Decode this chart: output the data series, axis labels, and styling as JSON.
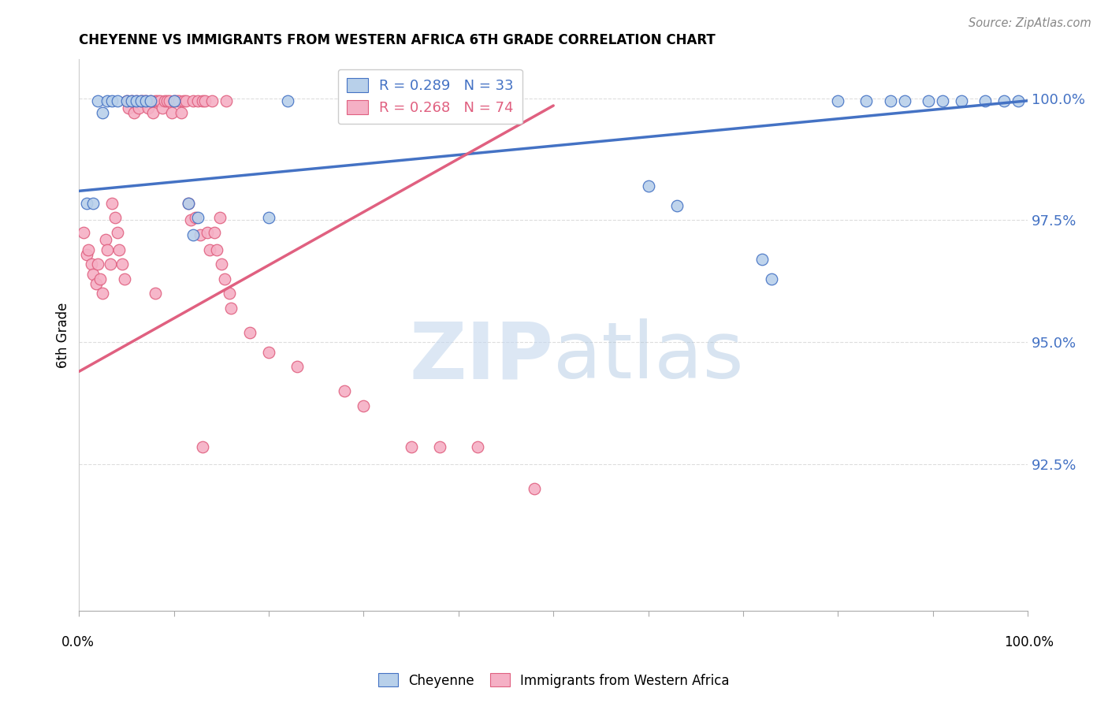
{
  "title": "CHEYENNE VS IMMIGRANTS FROM WESTERN AFRICA 6TH GRADE CORRELATION CHART",
  "source": "Source: ZipAtlas.com",
  "ylabel": "6th Grade",
  "ytick_labels": [
    "100.0%",
    "97.5%",
    "95.0%",
    "92.5%"
  ],
  "ytick_values": [
    1.0,
    0.975,
    0.95,
    0.925
  ],
  "xlim": [
    0.0,
    1.0
  ],
  "ylim": [
    0.895,
    1.008
  ],
  "legend_blue_r": "R = 0.289",
  "legend_blue_n": "N = 33",
  "legend_pink_r": "R = 0.268",
  "legend_pink_n": "N = 74",
  "blue_color": "#b8d0ea",
  "pink_color": "#f5b0c5",
  "blue_line_color": "#4472c4",
  "pink_line_color": "#e06080",
  "blue_trend_x": [
    0.0,
    1.0
  ],
  "blue_trend_y": [
    0.981,
    0.9995
  ],
  "pink_trend_x": [
    0.0,
    0.5
  ],
  "pink_trend_y": [
    0.944,
    0.9985
  ],
  "blue_scatter_x": [
    0.008,
    0.015,
    0.02,
    0.025,
    0.03,
    0.035,
    0.04,
    0.05,
    0.055,
    0.06,
    0.065,
    0.07,
    0.075,
    0.1,
    0.115,
    0.12,
    0.125,
    0.2,
    0.22,
    0.6,
    0.63,
    0.72,
    0.73,
    0.8,
    0.83,
    0.855,
    0.87,
    0.895,
    0.91,
    0.93,
    0.955,
    0.975,
    0.99
  ],
  "blue_scatter_y": [
    0.9785,
    0.9785,
    0.9995,
    0.997,
    0.9995,
    0.9995,
    0.9995,
    0.9995,
    0.9995,
    0.9995,
    0.9995,
    0.9995,
    0.9995,
    0.9995,
    0.9785,
    0.972,
    0.9755,
    0.9755,
    0.9995,
    0.982,
    0.978,
    0.967,
    0.963,
    0.9995,
    0.9995,
    0.9995,
    0.9995,
    0.9995,
    0.9995,
    0.9995,
    0.9995,
    0.9995,
    0.9995
  ],
  "pink_scatter_x": [
    0.005,
    0.008,
    0.01,
    0.013,
    0.015,
    0.018,
    0.02,
    0.022,
    0.025,
    0.028,
    0.03,
    0.033,
    0.035,
    0.038,
    0.04,
    0.042,
    0.045,
    0.048,
    0.05,
    0.052,
    0.055,
    0.058,
    0.06,
    0.063,
    0.065,
    0.068,
    0.07,
    0.073,
    0.075,
    0.078,
    0.08,
    0.083,
    0.085,
    0.088,
    0.09,
    0.093,
    0.095,
    0.098,
    0.1,
    0.103,
    0.105,
    0.108,
    0.11,
    0.113,
    0.115,
    0.118,
    0.12,
    0.123,
    0.125,
    0.128,
    0.13,
    0.133,
    0.135,
    0.138,
    0.14,
    0.143,
    0.145,
    0.148,
    0.15,
    0.153,
    0.155,
    0.158,
    0.16,
    0.18,
    0.2,
    0.23,
    0.28,
    0.3,
    0.35,
    0.38,
    0.42,
    0.48,
    0.08,
    0.13
  ],
  "pink_scatter_y": [
    0.9725,
    0.968,
    0.969,
    0.966,
    0.964,
    0.962,
    0.966,
    0.963,
    0.96,
    0.971,
    0.969,
    0.966,
    0.9785,
    0.9755,
    0.9725,
    0.969,
    0.966,
    0.963,
    0.9995,
    0.998,
    0.9995,
    0.997,
    0.9995,
    0.998,
    0.9995,
    0.9995,
    0.9995,
    0.998,
    0.9995,
    0.997,
    0.9995,
    0.9995,
    0.9995,
    0.998,
    0.9995,
    0.9995,
    0.9995,
    0.997,
    0.9995,
    0.9995,
    0.9995,
    0.997,
    0.9995,
    0.9995,
    0.9785,
    0.975,
    0.9995,
    0.9755,
    0.9995,
    0.972,
    0.9995,
    0.9995,
    0.9725,
    0.969,
    0.9995,
    0.9725,
    0.969,
    0.9755,
    0.966,
    0.963,
    0.9995,
    0.96,
    0.957,
    0.952,
    0.948,
    0.945,
    0.94,
    0.937,
    0.9285,
    0.9285,
    0.9285,
    0.92,
    0.96,
    0.9285
  ]
}
